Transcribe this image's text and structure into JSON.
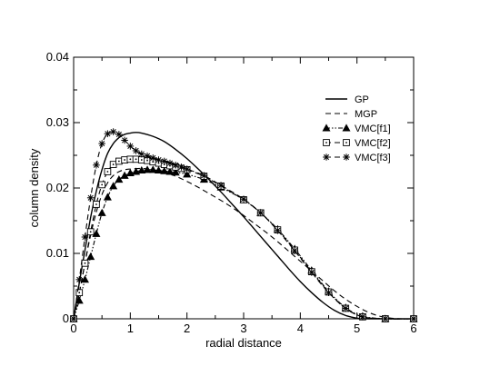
{
  "chart_data": {
    "type": "line",
    "xlabel": "radial distance",
    "ylabel": "column density",
    "xlim": [
      0,
      6
    ],
    "ylim": [
      0,
      0.04
    ],
    "xticks": [
      "0",
      "1",
      "2",
      "3",
      "4",
      "5",
      "6"
    ],
    "yticks": [
      "0",
      "0.01",
      "0.02",
      "0.03",
      "0.04"
    ],
    "grid": false,
    "legend_position": "top-right",
    "series": [
      {
        "name": "GP",
        "style": "solid",
        "marker": "none",
        "color": "#000000",
        "x": [
          0,
          0.1,
          0.2,
          0.3,
          0.4,
          0.5,
          0.6,
          0.7,
          0.8,
          0.9,
          1.0,
          1.1,
          1.2,
          1.4,
          1.6,
          1.8,
          2.0,
          2.2,
          2.4,
          2.6,
          2.8,
          3.0,
          3.2,
          3.4,
          3.6,
          3.8,
          4.0,
          4.2,
          4.4,
          4.6,
          4.8,
          5.0,
          5.2,
          5.4,
          5.6,
          6.0
        ],
        "y": [
          0,
          0.0055,
          0.0105,
          0.0155,
          0.0195,
          0.0228,
          0.0253,
          0.0268,
          0.0277,
          0.0282,
          0.0284,
          0.0285,
          0.0284,
          0.0279,
          0.0271,
          0.0259,
          0.0245,
          0.0229,
          0.0212,
          0.0194,
          0.0175,
          0.0156,
          0.0136,
          0.0116,
          0.0096,
          0.0076,
          0.0057,
          0.004,
          0.0025,
          0.0013,
          0.0005,
          0.0001,
          0,
          0,
          0,
          0
        ]
      },
      {
        "name": "MGP",
        "style": "dashed",
        "marker": "none",
        "color": "#000000",
        "x": [
          0,
          0.1,
          0.2,
          0.3,
          0.4,
          0.5,
          0.6,
          0.7,
          0.8,
          0.9,
          1.0,
          1.2,
          1.4,
          1.6,
          1.8,
          2.0,
          2.2,
          2.4,
          2.6,
          2.8,
          3.0,
          3.2,
          3.4,
          3.6,
          3.8,
          4.0,
          4.2,
          4.4,
          4.6,
          4.8,
          5.0,
          5.2,
          5.4,
          5.6,
          5.8,
          6.0
        ],
        "y": [
          0,
          0.004,
          0.0085,
          0.0128,
          0.0163,
          0.019,
          0.0208,
          0.0219,
          0.0225,
          0.0228,
          0.0229,
          0.023,
          0.0228,
          0.0224,
          0.0218,
          0.021,
          0.0201,
          0.0191,
          0.0181,
          0.017,
          0.0158,
          0.0145,
          0.0132,
          0.0118,
          0.0103,
          0.0088,
          0.0073,
          0.0058,
          0.0043,
          0.003,
          0.0019,
          0.001,
          0.0004,
          0.0001,
          0,
          0
        ]
      },
      {
        "name": "VMC[f1]",
        "style": "dash-dot-dot",
        "marker": "triangle-filled",
        "color": "#000000",
        "x": [
          0,
          0.1,
          0.2,
          0.3,
          0.4,
          0.5,
          0.6,
          0.7,
          0.8,
          0.9,
          1.0,
          1.1,
          1.2,
          1.3,
          1.4,
          1.5,
          1.6,
          1.7,
          1.8,
          2.0,
          2.3,
          2.6,
          3.0,
          3.3,
          3.6,
          3.9,
          4.2,
          4.5,
          4.8,
          5.1,
          5.5,
          6.0
        ],
        "y": [
          0,
          0.0028,
          0.006,
          0.0095,
          0.013,
          0.0162,
          0.0186,
          0.0203,
          0.0213,
          0.0219,
          0.0223,
          0.0225,
          0.0227,
          0.0228,
          0.0228,
          0.0227,
          0.0226,
          0.0225,
          0.0224,
          0.0221,
          0.0213,
          0.0201,
          0.0182,
          0.0162,
          0.0137,
          0.0107,
          0.0074,
          0.0042,
          0.0017,
          0.0004,
          0,
          0
        ]
      },
      {
        "name": "VMC[f2]",
        "style": "dashed",
        "marker": "square-dot",
        "color": "#000000",
        "x": [
          0,
          0.1,
          0.2,
          0.3,
          0.4,
          0.5,
          0.6,
          0.7,
          0.8,
          0.9,
          1.0,
          1.1,
          1.2,
          1.3,
          1.4,
          1.5,
          1.6,
          1.7,
          1.8,
          1.9,
          2.0,
          2.3,
          2.6,
          3.0,
          3.3,
          3.6,
          3.9,
          4.2,
          4.5,
          4.8,
          5.1,
          5.5,
          6.0
        ],
        "y": [
          0,
          0.004,
          0.0085,
          0.0133,
          0.0175,
          0.0205,
          0.0225,
          0.0236,
          0.0241,
          0.0243,
          0.0244,
          0.0244,
          0.0243,
          0.0242,
          0.024,
          0.0238,
          0.0236,
          0.0234,
          0.0232,
          0.023,
          0.0228,
          0.0218,
          0.0203,
          0.0182,
          0.0162,
          0.0136,
          0.0105,
          0.0072,
          0.0041,
          0.0016,
          0.0003,
          0,
          0
        ]
      },
      {
        "name": "VMC[f3]",
        "style": "dashed",
        "marker": "asterisk",
        "color": "#000000",
        "x": [
          0,
          0.1,
          0.2,
          0.3,
          0.4,
          0.5,
          0.6,
          0.7,
          0.8,
          0.9,
          1.0,
          1.1,
          1.2,
          1.3,
          1.4,
          1.5,
          1.6,
          1.7,
          1.8,
          1.9,
          2.0,
          2.3,
          2.6,
          3.0,
          3.3,
          3.6,
          3.9,
          4.2,
          4.5,
          4.8,
          5.1,
          5.5,
          6.0
        ],
        "y": [
          0,
          0.006,
          0.0125,
          0.0185,
          0.0235,
          0.0268,
          0.0283,
          0.0286,
          0.0282,
          0.0273,
          0.0264,
          0.0257,
          0.0252,
          0.0249,
          0.0246,
          0.0243,
          0.0241,
          0.0238,
          0.0235,
          0.0232,
          0.0229,
          0.0219,
          0.0204,
          0.0183,
          0.0162,
          0.0135,
          0.0104,
          0.0071,
          0.004,
          0.0016,
          0.0003,
          0,
          0
        ]
      }
    ]
  }
}
